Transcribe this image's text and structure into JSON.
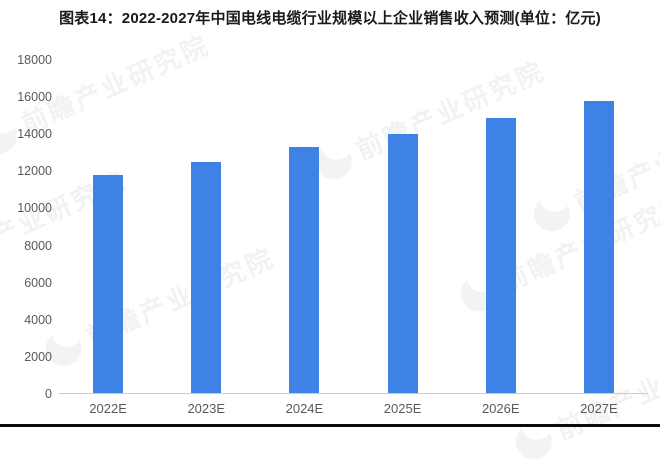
{
  "title": "图表14：2022-2027年中国电线电缆行业规模以上企业销售收入预测(单位：亿元)",
  "watermark": {
    "text": "前瞻产业研究院",
    "logo_icon": "qianzhan-bird-logo"
  },
  "colors": {
    "bar": "#3F82E6",
    "axis_label": "#595959",
    "axis_line": "#cccccc",
    "title_text": "#1a1a1a",
    "bottom_rule": "#0b0b0b"
  },
  "chart_data": {
    "type": "bar",
    "title": "图表14：2022-2027年中国电线电缆行业规模以上企业销售收入预测(单位：亿元)",
    "unit": "亿元",
    "categories": [
      "2022E",
      "2023E",
      "2024E",
      "2025E",
      "2026E",
      "2027E"
    ],
    "values": [
      11800,
      12500,
      13300,
      14000,
      14900,
      15800
    ],
    "xlabel": "",
    "ylabel": "",
    "ylim": [
      0,
      18000
    ],
    "yticks": [
      0,
      2000,
      4000,
      6000,
      8000,
      10000,
      12000,
      14000,
      16000,
      18000
    ],
    "grid": false,
    "legend": false,
    "bar_color": "#3F82E6"
  }
}
